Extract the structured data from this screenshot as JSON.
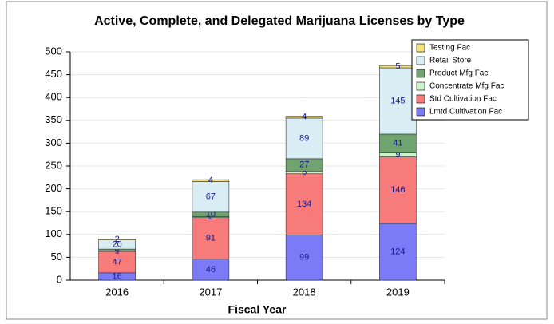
{
  "chart_data": {
    "type": "stacked_bar",
    "title": "Active, Complete, and Delegated Marijuana Licenses by Type",
    "x_label": "Fiscal Year",
    "categories": [
      "2016",
      "2017",
      "2018",
      "2019"
    ],
    "series": [
      {
        "name": "Lmtd Cultivation Fac",
        "color": "#7b7bf7",
        "values": [
          16,
          46,
          99,
          124
        ]
      },
      {
        "name": "Std Cultivation Fac",
        "color": "#f77b7b",
        "values": [
          47,
          91,
          134,
          146
        ]
      },
      {
        "name": "Concentrate Mfg Fac",
        "color": "#ccf5cc",
        "values": [
          1,
          2,
          6,
          9
        ]
      },
      {
        "name": "Product Mfg Fac",
        "color": "#6fa36f",
        "values": [
          4,
          10,
          27,
          41
        ]
      },
      {
        "name": "Retail Store",
        "color": "#d9edf5",
        "values": [
          20,
          67,
          89,
          145
        ]
      },
      {
        "name": "Testing Fac",
        "color": "#f7e27b",
        "values": [
          2,
          4,
          4,
          5
        ]
      }
    ],
    "ylim": [
      0,
      500
    ],
    "yticks": [
      0,
      50,
      100,
      150,
      200,
      250,
      300,
      350,
      400,
      450,
      500
    ],
    "grid": true,
    "legend": "upper right"
  }
}
